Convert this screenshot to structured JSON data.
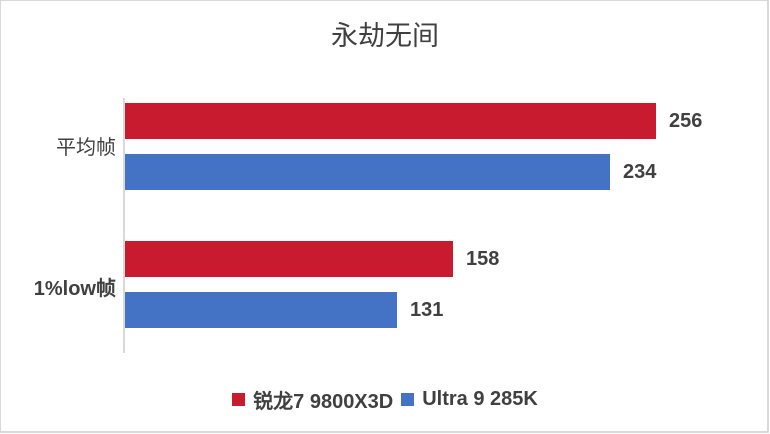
{
  "chart_data": {
    "type": "bar",
    "orientation": "horizontal",
    "title": "永劫无间",
    "categories": [
      "平均帧",
      "1%low帧"
    ],
    "series": [
      {
        "name": "锐龙7 9800X3D",
        "color": "#C81B30",
        "values": [
          256,
          158
        ]
      },
      {
        "name": "Ultra 9 285K",
        "color": "#4472C4",
        "values": [
          234,
          131
        ]
      }
    ],
    "xlabel": "",
    "ylabel": "",
    "grid": false,
    "legend_position": "bottom",
    "data_labels": true
  },
  "title": "永劫无间",
  "categories": [
    {
      "label": "平均帧"
    },
    {
      "label": "1%low帧"
    }
  ],
  "bars": [
    {
      "value": "256"
    },
    {
      "value": "234"
    },
    {
      "value": "158"
    },
    {
      "value": "131"
    }
  ],
  "legend": [
    {
      "label": "锐龙7 9800X3D",
      "color": "#C81B30"
    },
    {
      "label": "Ultra 9 285K",
      "color": "#4472C4"
    }
  ]
}
